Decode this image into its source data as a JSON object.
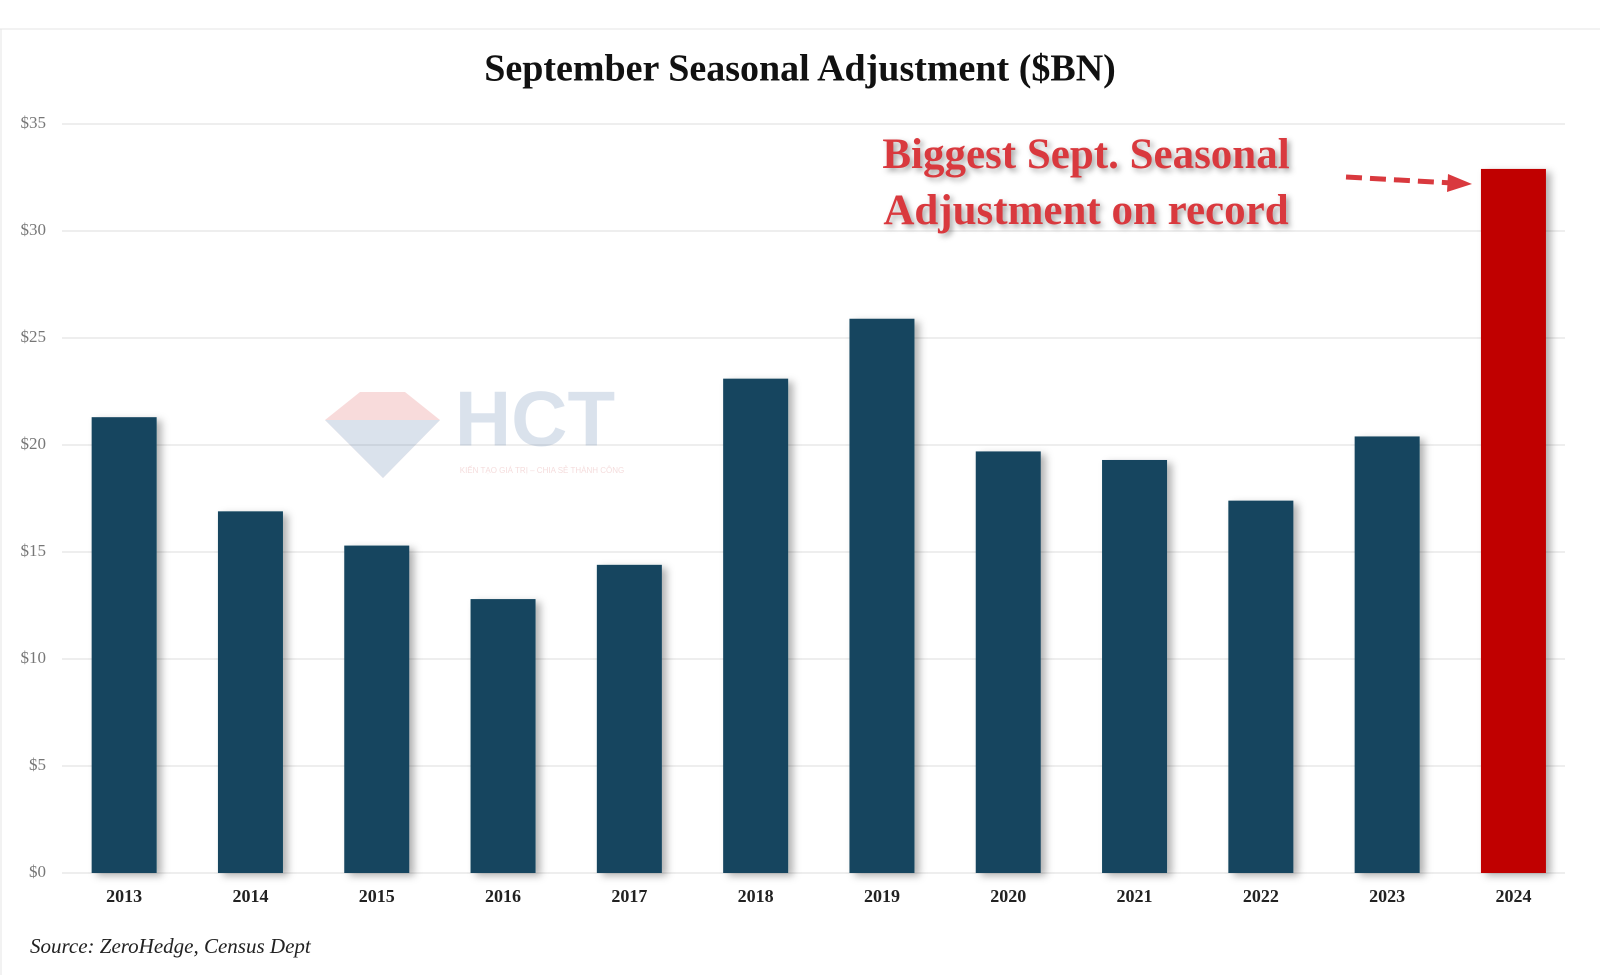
{
  "chart_data": {
    "type": "bar",
    "title": "September Seasonal Adjustment ($BN)",
    "categories": [
      "2013",
      "2014",
      "2015",
      "2016",
      "2017",
      "2018",
      "2019",
      "2020",
      "2021",
      "2022",
      "2023",
      "2024"
    ],
    "values": [
      21.3,
      16.9,
      15.3,
      12.8,
      14.4,
      23.1,
      25.9,
      19.7,
      19.3,
      17.4,
      20.4,
      32.9
    ],
    "colors": [
      "#12455f",
      "#12455f",
      "#12455f",
      "#12455f",
      "#12455f",
      "#12455f",
      "#12455f",
      "#12455f",
      "#12455f",
      "#12455f",
      "#12455f",
      "#c00000"
    ],
    "ylim": [
      0,
      35
    ],
    "yticks": [
      {
        "value": 0,
        "label": "$0"
      },
      {
        "value": 5,
        "label": "$5"
      },
      {
        "value": 10,
        "label": "$10"
      },
      {
        "value": 15,
        "label": "$15"
      },
      {
        "value": 20,
        "label": "$20"
      },
      {
        "value": 25,
        "label": "$25"
      },
      {
        "value": 30,
        "label": "$30"
      },
      {
        "value": 35,
        "label": "$35"
      }
    ],
    "grid": true,
    "annotation": [
      "Biggest Sept. Seasonal",
      "Adjustment on record"
    ],
    "source": "Source: ZeroHedge, Census Dept",
    "watermark": "HCT",
    "watermark_tagline": "KIẾN TẠO GIÁ TRỊ – CHIA SẺ THÀNH CÔNG"
  }
}
